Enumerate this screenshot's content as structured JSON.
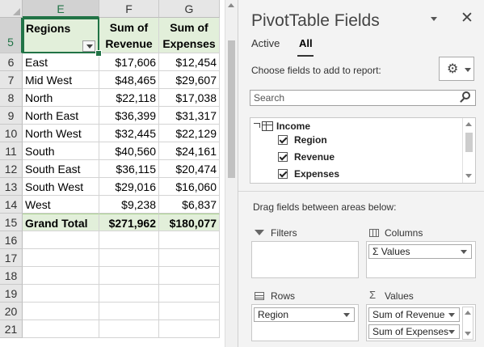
{
  "sheet": {
    "columns": [
      "E",
      "F",
      "G"
    ],
    "selected_cell": "E5",
    "header_row": {
      "row": "5",
      "regions": "Regions",
      "revenue": "Sum of Revenue",
      "expenses": "Sum of Expenses"
    },
    "rows": [
      {
        "row": "6",
        "region": "East",
        "revenue": "$17,606",
        "expenses": "$12,454"
      },
      {
        "row": "7",
        "region": "Mid West",
        "revenue": "$48,465",
        "expenses": "$29,607"
      },
      {
        "row": "8",
        "region": "North",
        "revenue": "$22,118",
        "expenses": "$17,038"
      },
      {
        "row": "9",
        "region": "North East",
        "revenue": "$36,399",
        "expenses": "$31,317"
      },
      {
        "row": "10",
        "region": "North West",
        "revenue": "$32,445",
        "expenses": "$22,129"
      },
      {
        "row": "11",
        "region": "South",
        "revenue": "$40,560",
        "expenses": "$24,161"
      },
      {
        "row": "12",
        "region": "South East",
        "revenue": "$36,115",
        "expenses": "$20,474"
      },
      {
        "row": "13",
        "region": "South West",
        "revenue": "$29,016",
        "expenses": "$16,060"
      },
      {
        "row": "14",
        "region": "West",
        "revenue": "$9,238",
        "expenses": "$6,837"
      }
    ],
    "total": {
      "row": "15",
      "label": "Grand Total",
      "revenue": "$271,962",
      "expenses": "$180,077"
    },
    "empty_rows": [
      "16",
      "17",
      "18",
      "19",
      "20",
      "21"
    ],
    "accent_color": "#217346",
    "pivot_fill": "#e2efda"
  },
  "pane": {
    "title": "PivotTable Fields",
    "close": "✕",
    "tabs": [
      "Active",
      "All"
    ],
    "active_tab": "All",
    "choose_label": "Choose fields to add to report:",
    "gear_glyph": "⚙",
    "search_placeholder": "Search",
    "table_name": "Income",
    "fields": [
      {
        "label": "Region",
        "checked": true
      },
      {
        "label": "Revenue",
        "checked": true
      },
      {
        "label": "Expenses",
        "checked": true
      }
    ],
    "drag_label": "Drag fields between areas below:",
    "areas": {
      "filters": {
        "title": "Filters"
      },
      "columns": {
        "title": "Columns",
        "items": [
          "Σ  Values"
        ]
      },
      "rows": {
        "title": "Rows",
        "items": [
          "Region"
        ]
      },
      "values": {
        "title": "Values",
        "sigma": "Σ",
        "items": [
          "Sum of Revenue",
          "Sum of Expenses"
        ]
      }
    }
  }
}
